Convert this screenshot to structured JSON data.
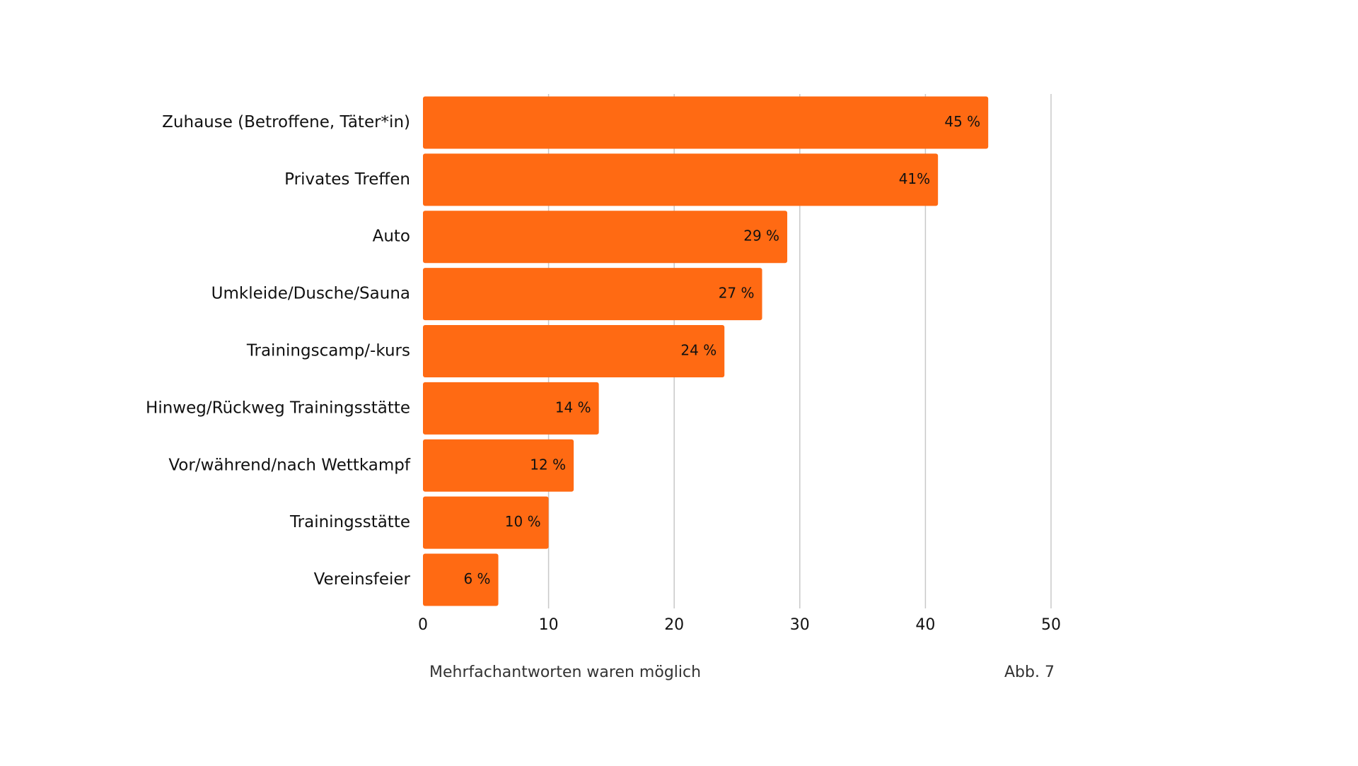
{
  "chart_data": {
    "type": "bar",
    "orientation": "horizontal",
    "categories": [
      "Zuhause (Betroffene, Täter*in)",
      "Privates Treffen",
      "Auto",
      "Umkleide/Dusche/Sauna",
      "Trainingscamp/-kurs",
      "Hinweg/Rückweg Trainingsstätte",
      "Vor/während/nach Wettkampf",
      "Trainingsstätte",
      "Vereinsfeier"
    ],
    "values": [
      45,
      41,
      29,
      27,
      24,
      14,
      12,
      10,
      6
    ],
    "data_labels": [
      "45 %",
      "41%",
      "29 %",
      "27 %",
      "24 %",
      "14 %",
      "12 %",
      "10 %",
      "6 %"
    ],
    "xlim": [
      0,
      50
    ],
    "xticks": [
      0,
      10,
      20,
      30,
      40,
      50
    ],
    "xlabel": "",
    "ylabel": "",
    "title": "",
    "grid": "vertical",
    "legend": "none",
    "bar_color": "#ff6a13",
    "gridline_color": "#c8c8c8"
  },
  "notes": {
    "left": "Mehrfachantworten waren möglich",
    "right": "Abb. 7"
  }
}
